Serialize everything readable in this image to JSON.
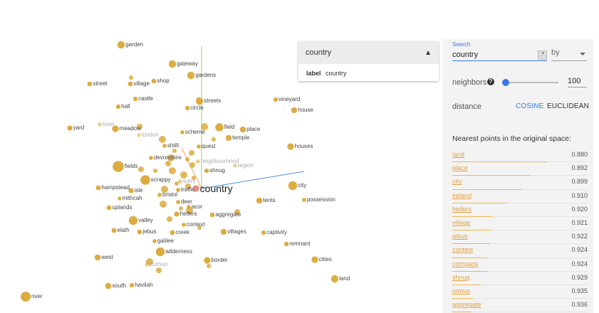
{
  "scatter": {
    "selected_point": "country",
    "axis_colors": {
      "x": "#4a8fe0",
      "y": "#8fd66e",
      "z": "#f3a058"
    },
    "point_color": "#d9a531",
    "points": [
      {
        "label": "garden",
        "size": 2.0,
        "faded": false
      },
      {
        "label": "gateway",
        "size": 2.0,
        "faded": false
      },
      {
        "label": "gardens",
        "size": 2.0,
        "faded": false
      },
      {
        "label": "street",
        "size": 1.3,
        "faded": false
      },
      {
        "label": "village",
        "size": 1.3,
        "faded": false
      },
      {
        "label": "shop",
        "size": 1.3,
        "faded": false
      },
      {
        "label": "castle",
        "size": 1.2,
        "faded": false
      },
      {
        "label": "streets",
        "size": 2.0,
        "faded": false
      },
      {
        "label": "vineyard",
        "size": 1.2,
        "faded": false
      },
      {
        "label": "hall",
        "size": 1.2,
        "faded": false
      },
      {
        "label": "circle",
        "size": 1.2,
        "faded": false
      },
      {
        "label": "house",
        "size": 1.6,
        "faded": false
      },
      {
        "label": "yard",
        "size": 1.4,
        "faded": false
      },
      {
        "label": "town",
        "size": 1.1,
        "faded": true
      },
      {
        "label": "meadow",
        "size": 1.8,
        "faded": false
      },
      {
        "label": "london",
        "size": 1.0,
        "faded": true
      },
      {
        "label": "scheme",
        "size": 1.1,
        "faded": false
      },
      {
        "label": "field",
        "size": 2.2,
        "faded": false
      },
      {
        "label": "place",
        "size": 1.6,
        "faded": false
      },
      {
        "label": "temple",
        "size": 1.6,
        "faded": false
      },
      {
        "label": "houses",
        "size": 1.8,
        "faded": false
      },
      {
        "label": "shtill",
        "size": 1.1,
        "faded": false
      },
      {
        "label": "quest",
        "size": 1.1,
        "faded": false
      },
      {
        "label": "devonshire",
        "size": 1.1,
        "faded": false
      },
      {
        "label": "fields",
        "size": 3.0,
        "faded": false
      },
      {
        "label": "neighbourhood",
        "size": 1.1,
        "faded": true
      },
      {
        "label": "region",
        "size": 1.0,
        "faded": true
      },
      {
        "label": "shnug",
        "size": 1.2,
        "faded": false
      },
      {
        "label": "scrappy",
        "size": 2.6,
        "faded": false
      },
      {
        "label": "surry",
        "size": 1.1,
        "faded": true
      },
      {
        "label": "city",
        "size": 2.4,
        "faded": false
      },
      {
        "label": "hampstead",
        "size": 1.3,
        "faded": false
      },
      {
        "label": "isle",
        "size": 1.4,
        "faded": false
      },
      {
        "label": "traffic",
        "size": 1.1,
        "faded": false
      },
      {
        "label": "country",
        "size": 1.8,
        "faded": false
      },
      {
        "label": "bristol",
        "size": 1.1,
        "faded": false
      },
      {
        "label": "mithcah",
        "size": 1.0,
        "faded": false
      },
      {
        "label": "deer",
        "size": 1.1,
        "faded": false
      },
      {
        "label": "tents",
        "size": 1.6,
        "faded": false
      },
      {
        "label": "possession",
        "size": 1.1,
        "faded": false
      },
      {
        "label": "uplands",
        "size": 1.3,
        "faded": false
      },
      {
        "label": "acor",
        "size": 1.1,
        "faded": false
      },
      {
        "label": "heifers",
        "size": 1.4,
        "faded": false
      },
      {
        "label": "aggregate",
        "size": 1.3,
        "faded": false
      },
      {
        "label": "valley",
        "size": 2.4,
        "faded": false
      },
      {
        "label": "context",
        "size": 1.1,
        "faded": false
      },
      {
        "label": "elath",
        "size": 1.3,
        "faded": false
      },
      {
        "label": "jebus",
        "size": 1.3,
        "faded": false
      },
      {
        "label": "creek",
        "size": 1.3,
        "faded": false
      },
      {
        "label": "villages",
        "size": 1.6,
        "faded": false
      },
      {
        "label": "captivity",
        "size": 1.2,
        "faded": false
      },
      {
        "label": "galilee",
        "size": 1.1,
        "faded": false
      },
      {
        "label": "remnant",
        "size": 1.2,
        "faded": false
      },
      {
        "label": "wilderness",
        "size": 2.4,
        "faded": false
      },
      {
        "label": "west",
        "size": 1.6,
        "faded": false
      },
      {
        "label": "border",
        "size": 1.8,
        "faded": false
      },
      {
        "label": "cities",
        "size": 1.8,
        "faded": false
      },
      {
        "label": "zuzhun",
        "size": 1.0,
        "faded": true
      },
      {
        "label": "land",
        "size": 2.0,
        "faded": false
      },
      {
        "label": "south",
        "size": 1.7,
        "faded": false
      },
      {
        "label": "havilah",
        "size": 1.2,
        "faded": false
      },
      {
        "label": "river",
        "size": 2.7,
        "faded": false
      }
    ],
    "extra_points": 28
  },
  "inspector": {
    "title": "country",
    "label_key": "label",
    "label_value": "country"
  },
  "panel": {
    "search_label": "Search",
    "search_value": "country",
    "regex_icon": ".*",
    "by_label": "by",
    "neighbors_label": "neighbors",
    "neighbors_value": "100",
    "neighbors_fraction": 0.05,
    "distance_label": "distance",
    "cosine_label": "COSINE",
    "euclidean_label": "EUCLIDEAN",
    "nearest_title": "Nearest points in the original space:",
    "nearest": [
      {
        "word": "land",
        "value": "0.880"
      },
      {
        "word": "place",
        "value": "0.892"
      },
      {
        "word": "city",
        "value": "0.899"
      },
      {
        "word": "ireland",
        "value": "0.910"
      },
      {
        "word": "heifers",
        "value": "0.920"
      },
      {
        "word": "village",
        "value": "0.921"
      },
      {
        "word": "jebus",
        "value": "0.922"
      },
      {
        "word": "context",
        "value": "0.924"
      },
      {
        "word": "company",
        "value": "0.924"
      },
      {
        "word": "shnug",
        "value": "0.929"
      },
      {
        "word": "ormus",
        "value": "0.935"
      },
      {
        "word": "aggregate",
        "value": "0.936"
      }
    ]
  }
}
